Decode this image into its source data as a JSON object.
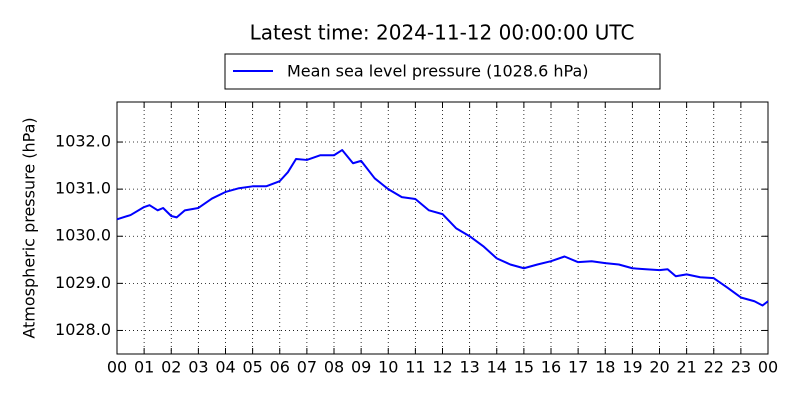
{
  "chart_data": {
    "type": "line",
    "title": "Latest time: 2024-11-12 00:00:00 UTC",
    "y_label": "Atmospheric pressure (hPa)",
    "x": [
      0,
      0.5,
      1.0,
      1.2,
      1.5,
      1.7,
      2.0,
      2.2,
      2.5,
      3.0,
      3.5,
      4.0,
      4.5,
      5.0,
      5.5,
      6.0,
      6.3,
      6.6,
      7.0,
      7.5,
      8.0,
      8.3,
      8.7,
      9.0,
      9.5,
      10.0,
      10.5,
      11.0,
      11.5,
      12.0,
      12.5,
      13.0,
      13.5,
      14.0,
      14.5,
      15.0,
      15.5,
      16.0,
      16.5,
      17.0,
      17.5,
      18.0,
      18.5,
      19.0,
      19.5,
      20.0,
      20.3,
      20.6,
      21.0,
      21.5,
      22.0,
      22.5,
      23.0,
      23.5,
      23.8,
      24.0
    ],
    "series": [
      {
        "name": "Mean sea level pressure (1028.6 hPa)",
        "color": "#0000ff",
        "values": [
          1030.36,
          1030.45,
          1030.62,
          1030.66,
          1030.55,
          1030.6,
          1030.43,
          1030.4,
          1030.55,
          1030.6,
          1030.8,
          1030.94,
          1031.02,
          1031.06,
          1031.06,
          1031.17,
          1031.36,
          1031.64,
          1031.62,
          1031.72,
          1031.72,
          1031.83,
          1031.55,
          1031.6,
          1031.23,
          1031.0,
          1030.83,
          1030.79,
          1030.55,
          1030.47,
          1030.17,
          1030.0,
          1029.79,
          1029.53,
          1029.4,
          1029.32,
          1029.4,
          1029.47,
          1029.57,
          1029.45,
          1029.47,
          1029.43,
          1029.4,
          1029.32,
          1029.3,
          1029.28,
          1029.3,
          1029.15,
          1029.19,
          1029.13,
          1029.11,
          1028.91,
          1028.7,
          1028.62,
          1028.53,
          1028.62
        ]
      }
    ],
    "xlim": [
      0,
      24
    ],
    "xticks": [
      {
        "value": 0,
        "label": "00"
      },
      {
        "value": 1,
        "label": "01"
      },
      {
        "value": 2,
        "label": "02"
      },
      {
        "value": 3,
        "label": "03"
      },
      {
        "value": 4,
        "label": "04"
      },
      {
        "value": 5,
        "label": "05"
      },
      {
        "value": 6,
        "label": "06"
      },
      {
        "value": 7,
        "label": "07"
      },
      {
        "value": 8,
        "label": "08"
      },
      {
        "value": 9,
        "label": "09"
      },
      {
        "value": 10,
        "label": "10"
      },
      {
        "value": 11,
        "label": "11"
      },
      {
        "value": 12,
        "label": "12"
      },
      {
        "value": 13,
        "label": "13"
      },
      {
        "value": 14,
        "label": "14"
      },
      {
        "value": 15,
        "label": "15"
      },
      {
        "value": 16,
        "label": "16"
      },
      {
        "value": 17,
        "label": "17"
      },
      {
        "value": 18,
        "label": "18"
      },
      {
        "value": 19,
        "label": "19"
      },
      {
        "value": 20,
        "label": "20"
      },
      {
        "value": 21,
        "label": "21"
      },
      {
        "value": 22,
        "label": "22"
      },
      {
        "value": 23,
        "label": "23"
      },
      {
        "value": 24,
        "label": "00"
      }
    ],
    "ylim": [
      1027.5,
      1032.85
    ],
    "yticks": [
      {
        "value": 1028,
        "label": "1028.0"
      },
      {
        "value": 1029,
        "label": "1029.0"
      },
      {
        "value": 1030,
        "label": "1030.0"
      },
      {
        "value": 1031,
        "label": "1031.0"
      },
      {
        "value": 1032,
        "label": "1032.0"
      }
    ],
    "grid": true,
    "legend": "top"
  }
}
